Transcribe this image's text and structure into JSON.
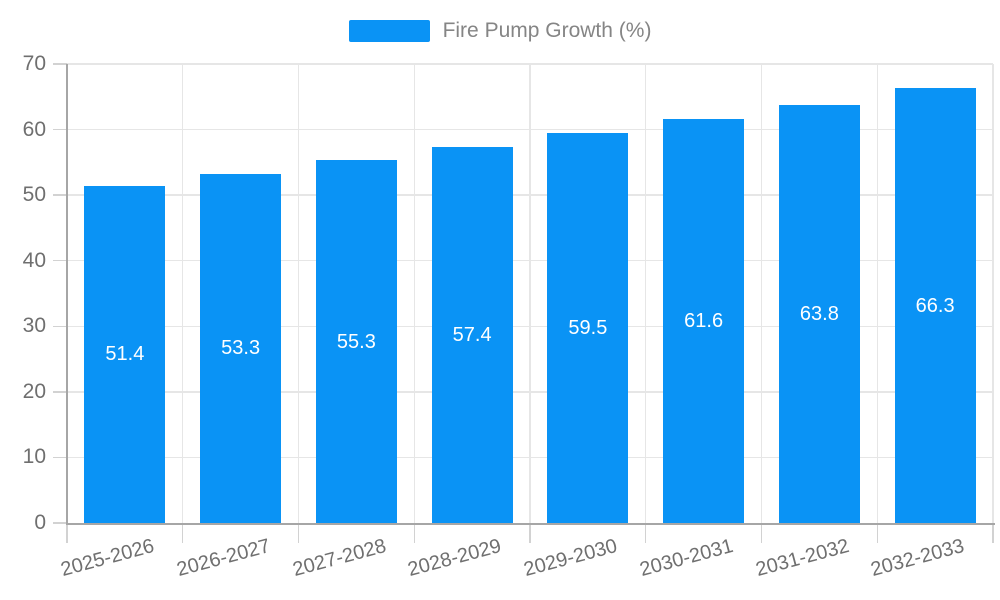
{
  "chart_data": {
    "type": "bar",
    "title": "Fire Pump Growth (%)",
    "legend": {
      "label": "Fire Pump Growth (%)",
      "position": "top"
    },
    "categories": [
      "2025-2026",
      "2026-2027",
      "2027-2028",
      "2028-2029",
      "2029-2030",
      "2030-2031",
      "2031-2032",
      "2032-2033"
    ],
    "values": [
      51.4,
      53.3,
      55.3,
      57.4,
      59.5,
      61.6,
      63.8,
      66.3
    ],
    "value_labels": [
      "51.4",
      "53.3",
      "55.3",
      "57.4",
      "59.5",
      "61.6",
      "63.8",
      "66.3"
    ],
    "xlabel": "",
    "ylabel": "",
    "ylim": [
      0,
      70
    ],
    "ytick_step": 10,
    "yticks": [
      0,
      10,
      20,
      30,
      40,
      50,
      60,
      70
    ],
    "grid": true,
    "x_label_rotation_deg": -15
  },
  "colors": {
    "bar": "#0a93f5",
    "grid": "#e6e6e6",
    "axis": "#a6a6a6",
    "tick_mark": "#d2d2d2",
    "tick_text": "#6f6f6f",
    "legend_text": "#858585",
    "value_text": "#ffffff",
    "background": "#ffffff"
  }
}
